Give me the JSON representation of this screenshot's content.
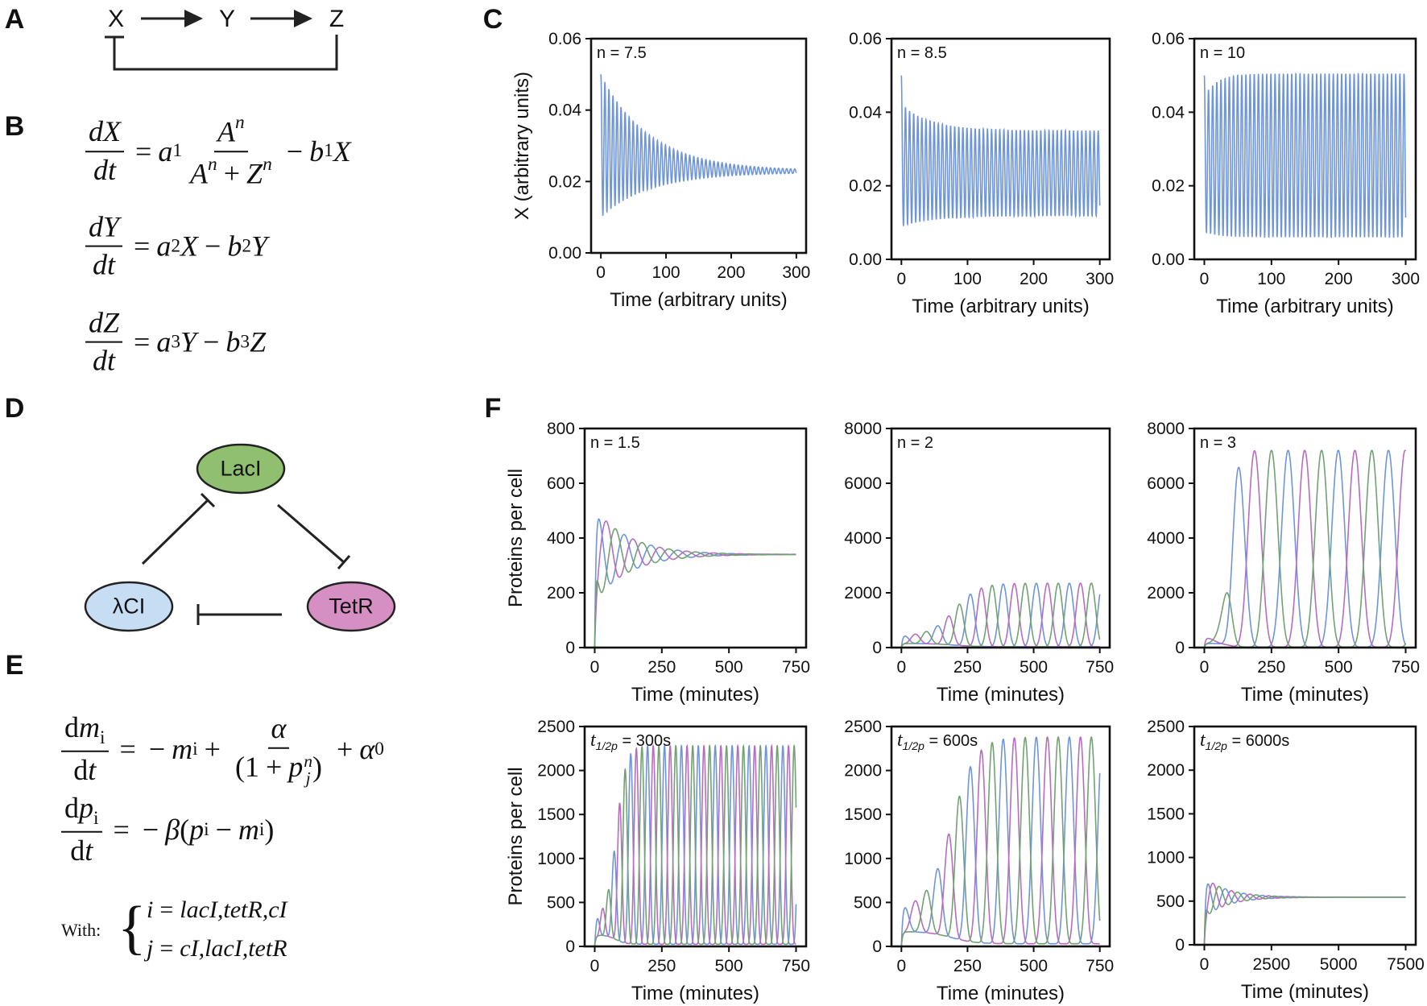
{
  "panel_letters": [
    "A",
    "B",
    "C",
    "D",
    "E",
    "F"
  ],
  "panel_a": {
    "nodes": [
      "X",
      "Y",
      "Z"
    ]
  },
  "panel_b": {
    "equations": [
      [
        {
          "frac": {
            "num": [
              {
                "v": "dX"
              }
            ],
            "den": [
              {
                "v": "dt"
              }
            ]
          }
        },
        {
          "op": "="
        },
        {
          "v": "a"
        },
        {
          "sub": "1"
        },
        {
          "frac": {
            "num": [
              {
                "v": "A"
              },
              {
                "sup": "n"
              }
            ],
            "den": [
              {
                "v": "A"
              },
              {
                "sup": "n"
              },
              {
                "op": "+"
              },
              {
                "v": "Z"
              },
              {
                "sup": "n"
              }
            ]
          }
        },
        {
          "op": "−"
        },
        {
          "v": "b"
        },
        {
          "sub": "1"
        },
        {
          "v": "X"
        }
      ],
      [
        {
          "frac": {
            "num": [
              {
                "v": "dY"
              }
            ],
            "den": [
              {
                "v": "dt"
              }
            ]
          }
        },
        {
          "op": "="
        },
        {
          "v": "a"
        },
        {
          "sub": "2"
        },
        {
          "v": "X"
        },
        {
          "op": "−"
        },
        {
          "v": "b"
        },
        {
          "sub": "2"
        },
        {
          "v": "Y"
        }
      ],
      [
        {
          "frac": {
            "num": [
              {
                "v": "dZ"
              }
            ],
            "den": [
              {
                "v": "dt"
              }
            ]
          }
        },
        {
          "op": "="
        },
        {
          "v": "a"
        },
        {
          "sub": "3"
        },
        {
          "v": "Y"
        },
        {
          "op": "−"
        },
        {
          "v": "b"
        },
        {
          "sub": "3"
        },
        {
          "v": "Z"
        }
      ]
    ]
  },
  "panel_d": {
    "nodes": [
      {
        "label": "LacI",
        "color": "#8fbf6f"
      },
      {
        "label": "λCI",
        "color": "#c7ddf4"
      },
      {
        "label": "TetR",
        "color": "#d58fc2"
      }
    ]
  },
  "panel_e": {
    "equations": [
      [
        {
          "frac": {
            "num": [
              {
                "rm": "d"
              },
              {
                "v": "m"
              },
              {
                "sub": "i"
              }
            ],
            "den": [
              {
                "rm": "d"
              },
              {
                "v": "t"
              }
            ]
          }
        },
        {
          "op": "="
        },
        {
          "op": "−"
        },
        {
          "v": "m"
        },
        {
          "sub": "i"
        },
        {
          "op": "+"
        },
        {
          "frac": {
            "num": [
              {
                "v": "α"
              }
            ],
            "den": [
              {
                "rm": "(1"
              },
              {
                "op": "+"
              },
              {
                "v": "p"
              },
              {
                "supsub": [
                  "n",
                  "j"
                ]
              },
              {
                "rm": ")"
              }
            ]
          }
        },
        {
          "op": "+"
        },
        {
          "v": "α"
        },
        {
          "sub": "0"
        }
      ],
      [
        {
          "frac": {
            "num": [
              {
                "rm": "d"
              },
              {
                "v": "p"
              },
              {
                "sub": "i"
              }
            ],
            "den": [
              {
                "rm": "d"
              },
              {
                "v": "t"
              }
            ]
          }
        },
        {
          "op": "="
        },
        {
          "op": "−"
        },
        {
          "v": "β"
        },
        {
          "rm": "("
        },
        {
          "v": "p"
        },
        {
          "sub": "i"
        },
        {
          "op": "−"
        },
        {
          "v": "m"
        },
        {
          "sub": "i"
        },
        {
          "rm": ")"
        }
      ]
    ],
    "with_label": "With:",
    "brace": "{",
    "conditions": [
      [
        {
          "v": "i"
        },
        {
          "op": "="
        },
        {
          "v": "lacI,tetR,cI"
        }
      ],
      [
        {
          "v": "j"
        },
        {
          "op": "="
        },
        {
          "v": "cI,lacI,tetR"
        }
      ]
    ]
  },
  "colors": {
    "blue": "#6f95d9",
    "magenta": "#b86cc0",
    "green": "#72a173",
    "axis": "#111111"
  },
  "chart_data": [
    {
      "panel": "C",
      "type": "line",
      "annotation": {
        "text": "n = 7.5"
      },
      "xlabel": "Time (arbitrary units)",
      "ylabel": "X (arbitrary units)",
      "xlim": [
        0,
        300
      ],
      "ylim": [
        0,
        0.06
      ],
      "xticks": [
        0,
        100,
        200,
        300
      ],
      "xtick_labels": [
        "0",
        "100",
        "200",
        "300"
      ],
      "yticks": [
        0,
        0.02,
        0.04,
        0.06
      ],
      "ytick_labels": [
        "0.00",
        "0.02",
        "0.04",
        "0.06"
      ],
      "series": [
        {
          "color": "#6f95d9",
          "model": {
            "kind": "envelope",
            "period": 6.2,
            "start_max": 0.05,
            "end_max": 0.023,
            "tau_max": 75,
            "start_min": 0.01,
            "end_min": 0.0225,
            "tau_min": 75
          }
        }
      ]
    },
    {
      "panel": "C",
      "type": "line",
      "annotation": {
        "text": "n = 8.5"
      },
      "xlabel": "Time (arbitrary units)",
      "ylabel": "",
      "xlim": [
        0,
        300
      ],
      "ylim": [
        0,
        0.06
      ],
      "xticks": [
        0,
        100,
        200,
        300
      ],
      "xtick_labels": [
        "0",
        "100",
        "200",
        "300"
      ],
      "yticks": [
        0,
        0.02,
        0.04,
        0.06
      ],
      "ytick_labels": [
        "0.00",
        "0.02",
        "0.04",
        "0.06"
      ],
      "series": [
        {
          "color": "#6f95d9",
          "model": {
            "kind": "envelope",
            "period": 6.2,
            "first_peak": 0.05,
            "start_max": 0.042,
            "end_max": 0.035,
            "tau_max": 45,
            "start_min": 0.009,
            "end_min": 0.0118,
            "tau_min": 50
          }
        }
      ]
    },
    {
      "panel": "C",
      "type": "line",
      "annotation": {
        "text": "n = 10"
      },
      "xlabel": "Time (arbitrary units)",
      "ylabel": "",
      "xlim": [
        0,
        300
      ],
      "ylim": [
        0,
        0.06
      ],
      "xticks": [
        0,
        100,
        200,
        300
      ],
      "xtick_labels": [
        "0",
        "100",
        "200",
        "300"
      ],
      "yticks": [
        0,
        0.02,
        0.04,
        0.06
      ],
      "ytick_labels": [
        "0.00",
        "0.02",
        "0.04",
        "0.06"
      ],
      "series": [
        {
          "color": "#6f95d9",
          "model": {
            "kind": "envelope",
            "period": 6.2,
            "first_peak": 0.05,
            "start_max": 0.044,
            "end_max": 0.0505,
            "tau_max": 18,
            "start_min": 0.0075,
            "end_min": 0.006,
            "tau_min": 20
          }
        }
      ]
    },
    {
      "panel": "F",
      "type": "line",
      "annotation": {
        "text": "n = 1.5"
      },
      "xlabel": "Time (minutes)",
      "ylabel": "Proteins per cell",
      "xlim": [
        0,
        750
      ],
      "ylim": [
        0,
        800
      ],
      "xticks": [
        0,
        250,
        500,
        750
      ],
      "xtick_labels": [
        "0",
        "250",
        "500",
        "750"
      ],
      "yticks": [
        0,
        200,
        400,
        600,
        800
      ],
      "ytick_labels": [
        "0",
        "200",
        "400",
        "600",
        "800"
      ],
      "series": [
        {
          "color": "#6f95d9",
          "model": {
            "kind": "damped",
            "mean": 340,
            "amp0": 170,
            "tau": 130,
            "period": 100,
            "phase": 11
          }
        },
        {
          "color": "#b86cc0",
          "model": {
            "kind": "damped",
            "mean": 340,
            "amp0": 170,
            "tau": 130,
            "period": 100,
            "phase": 44
          }
        },
        {
          "color": "#72a173",
          "model": {
            "kind": "damped",
            "mean": 340,
            "amp0": 170,
            "tau": 130,
            "period": 100,
            "phase": 78
          }
        }
      ]
    },
    {
      "panel": "F",
      "type": "line",
      "annotation": {
        "text": "n = 2"
      },
      "xlabel": "Time (minutes)",
      "ylabel": "",
      "xlim": [
        0,
        750
      ],
      "ylim": [
        0,
        8000
      ],
      "xticks": [
        0,
        250,
        500,
        750
      ],
      "xtick_labels": [
        "0",
        "250",
        "500",
        "750"
      ],
      "yticks": [
        0,
        2000,
        4000,
        6000,
        8000
      ],
      "ytick_labels": [
        "0",
        "2000",
        "4000",
        "6000",
        "8000"
      ],
      "series": [
        {
          "color": "#6f95d9",
          "model": {
            "kind": "growth",
            "start": 420,
            "end": 2350,
            "t_half": 200,
            "width": 45,
            "period": 125,
            "phase": 10,
            "sharpness": 3,
            "base_start": 150,
            "base_end": 30
          }
        },
        {
          "color": "#b86cc0",
          "model": {
            "kind": "growth",
            "start": 420,
            "end": 2350,
            "t_half": 200,
            "width": 45,
            "period": 125,
            "phase": 52,
            "sharpness": 3,
            "base_start": 150,
            "base_end": 30
          }
        },
        {
          "color": "#72a173",
          "model": {
            "kind": "growth",
            "start": 420,
            "end": 2350,
            "t_half": 200,
            "width": 45,
            "period": 125,
            "phase": 93,
            "sharpness": 3,
            "base_start": 150,
            "base_end": 30
          }
        }
      ]
    },
    {
      "panel": "F",
      "type": "line",
      "annotation": {
        "text": "n = 3"
      },
      "xlabel": "Time (minutes)",
      "ylabel": "",
      "xlim": [
        0,
        750
      ],
      "ylim": [
        0,
        8000
      ],
      "xticks": [
        0,
        250,
        500,
        750
      ],
      "xtick_labels": [
        "0",
        "250",
        "500",
        "750"
      ],
      "yticks": [
        0,
        2000,
        4000,
        6000,
        8000
      ],
      "ytick_labels": [
        "0",
        "2000",
        "4000",
        "6000",
        "8000"
      ],
      "series": [
        {
          "color": "#6f95d9",
          "model": {
            "kind": "growth",
            "start": 350,
            "end": 7200,
            "t_half": 92,
            "width": 15,
            "period": 187,
            "phase": 125,
            "sharpness": 3,
            "base_start": 150,
            "base_end": 20
          }
        },
        {
          "color": "#b86cc0",
          "model": {
            "kind": "growth",
            "start": 350,
            "end": 7200,
            "t_half": 92,
            "width": 15,
            "period": 187,
            "phase": 187,
            "sharpness": 3,
            "base_start": 150,
            "base_end": 20
          }
        },
        {
          "color": "#72a173",
          "model": {
            "kind": "growth",
            "start": 350,
            "end": 7200,
            "t_half": 92,
            "width": 15,
            "period": 187,
            "phase": 250,
            "sharpness": 3,
            "base_start": 150,
            "base_end": 20
          }
        }
      ]
    },
    {
      "panel": "F",
      "type": "line",
      "annotation": {
        "italic": "t",
        "sub": "1/2p",
        "rest": " = 300s"
      },
      "xlabel": "Time (minutes)",
      "ylabel": "Proteins per cell",
      "xlim": [
        0,
        750
      ],
      "ylim": [
        0,
        2500
      ],
      "xticks": [
        0,
        250,
        500,
        750
      ],
      "xtick_labels": [
        "0",
        "250",
        "500",
        "750"
      ],
      "yticks": [
        0,
        500,
        1000,
        1500,
        2000,
        2500
      ],
      "ytick_labels": [
        "0",
        "500",
        "1000",
        "1500",
        "2000",
        "2500"
      ],
      "series": [
        {
          "color": "#6f95d9",
          "model": {
            "kind": "growth",
            "start": 320,
            "end": 2280,
            "t_half": 80,
            "width": 18,
            "period": 63,
            "phase": 8,
            "sharpness": 3,
            "base_start": 130,
            "base_end": 25
          }
        },
        {
          "color": "#b86cc0",
          "model": {
            "kind": "growth",
            "start": 320,
            "end": 2280,
            "t_half": 80,
            "width": 18,
            "period": 63,
            "phase": 29,
            "sharpness": 3,
            "base_start": 130,
            "base_end": 25
          }
        },
        {
          "color": "#72a173",
          "model": {
            "kind": "growth",
            "start": 320,
            "end": 2280,
            "t_half": 80,
            "width": 18,
            "period": 63,
            "phase": 50,
            "sharpness": 3,
            "base_start": 130,
            "base_end": 25
          }
        }
      ]
    },
    {
      "panel": "F",
      "type": "line",
      "annotation": {
        "italic": "t",
        "sub": "1/2p",
        "rest": " = 600s"
      },
      "xlabel": "Time (minutes)",
      "ylabel": "",
      "xlim": [
        0,
        750
      ],
      "ylim": [
        0,
        2500
      ],
      "xticks": [
        0,
        250,
        500,
        750
      ],
      "xtick_labels": [
        "0",
        "250",
        "500",
        "750"
      ],
      "yticks": [
        0,
        500,
        1000,
        1500,
        2000,
        2500
      ],
      "ytick_labels": [
        "0",
        "500",
        "1000",
        "1500",
        "2000",
        "2500"
      ],
      "series": [
        {
          "color": "#6f95d9",
          "model": {
            "kind": "growth",
            "start": 430,
            "end": 2380,
            "t_half": 190,
            "width": 45,
            "period": 125,
            "phase": 10,
            "sharpness": 3,
            "base_start": 170,
            "base_end": 30
          }
        },
        {
          "color": "#b86cc0",
          "model": {
            "kind": "growth",
            "start": 430,
            "end": 2380,
            "t_half": 190,
            "width": 45,
            "period": 125,
            "phase": 52,
            "sharpness": 3,
            "base_start": 170,
            "base_end": 30
          }
        },
        {
          "color": "#72a173",
          "model": {
            "kind": "growth",
            "start": 430,
            "end": 2380,
            "t_half": 190,
            "width": 45,
            "period": 125,
            "phase": 93,
            "sharpness": 3,
            "base_start": 170,
            "base_end": 30
          }
        }
      ]
    },
    {
      "panel": "F",
      "type": "line",
      "annotation": {
        "italic": "t",
        "sub": "1/2p",
        "rest": " = 6000s"
      },
      "xlabel": "Time (minutes)",
      "ylabel": "",
      "xlim": [
        0,
        7500
      ],
      "ylim": [
        0,
        2500
      ],
      "xticks": [
        0,
        2500,
        5000,
        7500
      ],
      "xtick_labels": [
        "0",
        "2500",
        "5000",
        "7500"
      ],
      "yticks": [
        0,
        500,
        1000,
        1500,
        2000,
        2500
      ],
      "ytick_labels": [
        "0",
        "500",
        "1000",
        "1500",
        "2000",
        "2500"
      ],
      "series": [
        {
          "color": "#6f95d9",
          "model": {
            "kind": "damped",
            "mean": 545,
            "amp0": 230,
            "tau": 900,
            "period": 690,
            "phase": 100
          }
        },
        {
          "color": "#b86cc0",
          "model": {
            "kind": "damped",
            "mean": 545,
            "amp0": 230,
            "tau": 900,
            "period": 690,
            "phase": 330
          }
        },
        {
          "color": "#72a173",
          "model": {
            "kind": "damped",
            "mean": 545,
            "amp0": 230,
            "tau": 900,
            "period": 690,
            "phase": 560
          }
        }
      ]
    }
  ]
}
